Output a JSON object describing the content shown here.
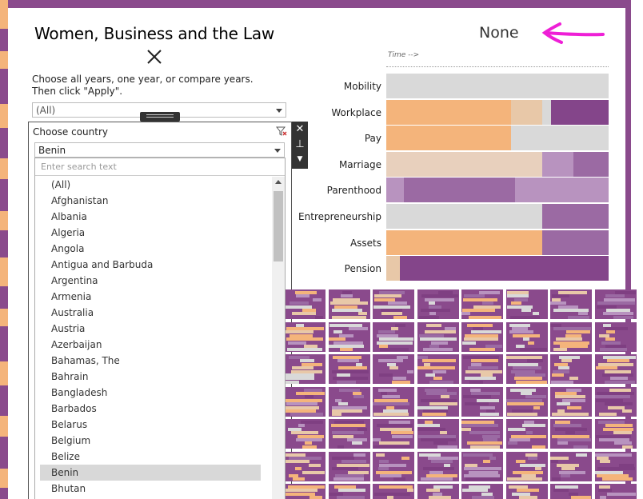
{
  "header": {
    "title": "Women, Business and the Law",
    "selection_text": "None",
    "time_label": "Time -->"
  },
  "year_filter": {
    "instruction_line1": "Choose all years, one year, or compare years.",
    "instruction_line2": "Then click \"Apply\".",
    "selected": "(All)"
  },
  "country_filter": {
    "label": "Choose country",
    "selected": "Benin",
    "search_placeholder": "Enter search text",
    "options": [
      "(All)",
      "Afghanistan",
      "Albania",
      "Algeria",
      "Angola",
      "Antigua and Barbuda",
      "Argentina",
      "Armenia",
      "Australia",
      "Austria",
      "Azerbaijan",
      "Bahamas, The",
      "Bahrain",
      "Bangladesh",
      "Barbados",
      "Belarus",
      "Belgium",
      "Belize",
      "Benin",
      "Bhutan"
    ]
  },
  "chart_data": {
    "type": "bar",
    "categories": [
      "Mobility",
      "Workplace",
      "Pay",
      "Marriage",
      "Parenthood",
      "Entrepreneurship",
      "Assets",
      "Pension"
    ],
    "series_colors": [
      "#f4b47b",
      "#e8c8a8",
      "#d9d9d9",
      "#b893bf",
      "#9b6aa3",
      "#7f3f82"
    ],
    "segments": [
      [
        {
          "color": "#d9d9d9",
          "share": 1.0
        }
      ],
      [
        {
          "color": "#f4b47b",
          "share": 0.56
        },
        {
          "color": "#e8c8a8",
          "share": 0.14
        },
        {
          "color": "#d9d9d9",
          "share": 0.04
        },
        {
          "color": "#84458a",
          "share": 0.26
        }
      ],
      [
        {
          "color": "#f4b47b",
          "share": 0.56
        },
        {
          "color": "#d9d9d9",
          "share": 0.44
        }
      ],
      [
        {
          "color": "#e8d0bd",
          "share": 0.7
        },
        {
          "color": "#b893bf",
          "share": 0.14
        },
        {
          "color": "#9b6aa3",
          "share": 0.16
        }
      ],
      [
        {
          "color": "#b893bf",
          "share": 0.08
        },
        {
          "color": "#9b6aa3",
          "share": 0.5
        },
        {
          "color": "#b893bf",
          "share": 0.42
        }
      ],
      [
        {
          "color": "#d9d9d9",
          "share": 0.7
        },
        {
          "color": "#9b6aa3",
          "share": 0.3
        }
      ],
      [
        {
          "color": "#f4b47b",
          "share": 0.7
        },
        {
          "color": "#9b6aa3",
          "share": 0.3
        }
      ],
      [
        {
          "color": "#e8c8a8",
          "share": 0.06
        },
        {
          "color": "#84458a",
          "share": 0.94
        }
      ]
    ]
  },
  "colors": {
    "frame_purple": "#8a4a8c",
    "frame_orange": "#f4b47b",
    "arrow_magenta": "#ee1fd6"
  }
}
